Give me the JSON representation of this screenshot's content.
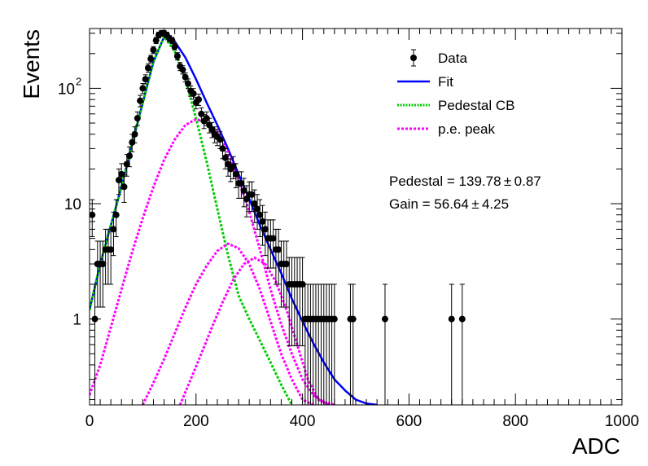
{
  "chart_data": {
    "type": "scatter",
    "xlabel": "ADC",
    "ylabel": "Events",
    "xlim": [
      0,
      1000
    ],
    "ylim": [
      0.18,
      330
    ],
    "yscale": "log",
    "grid": false,
    "legend_position": "top-right",
    "x_ticks": [
      0,
      200,
      400,
      600,
      800,
      1000
    ],
    "y_ticks": [
      {
        "value": 1,
        "label": "1"
      },
      {
        "value": 10,
        "label": "10"
      },
      {
        "value": 100,
        "label": "10",
        "sup": "2"
      }
    ],
    "legend": [
      {
        "key": "data",
        "label": "Data"
      },
      {
        "key": "fit",
        "label": "Fit"
      },
      {
        "key": "pedestal",
        "label": "Pedestal CB"
      },
      {
        "key": "pe",
        "label": "p.e. peak"
      }
    ],
    "annotations": {
      "pedestal": "Pedestal = 139.78 ± 0.87",
      "gain": "Gain = 56.64 ± 4.25"
    },
    "colors": {
      "data": "#000000",
      "fit": "#0000ff",
      "pedestal": "#00cc00",
      "pe": "#ff00ff"
    },
    "series": [
      {
        "name": "Data",
        "kind": "points",
        "x": [
          5,
          10,
          15,
          20,
          25,
          30,
          35,
          40,
          45,
          50,
          55,
          60,
          65,
          70,
          75,
          80,
          85,
          90,
          95,
          100,
          105,
          110,
          115,
          120,
          125,
          130,
          135,
          140,
          145,
          150,
          155,
          160,
          165,
          170,
          175,
          180,
          185,
          190,
          195,
          200,
          205,
          210,
          215,
          220,
          225,
          230,
          235,
          240,
          245,
          250,
          255,
          260,
          265,
          270,
          275,
          280,
          285,
          290,
          295,
          300,
          305,
          310,
          315,
          320,
          325,
          330,
          335,
          340,
          345,
          350,
          355,
          360,
          365,
          370,
          375,
          380,
          385,
          390,
          395,
          400,
          405,
          410,
          415,
          420,
          425,
          430,
          435,
          440,
          445,
          450,
          455,
          460,
          490,
          495,
          555,
          680,
          700
        ],
        "y": [
          8,
          1,
          3,
          3,
          3,
          4,
          4,
          4,
          6,
          8,
          16,
          18,
          14,
          22,
          26,
          34,
          40,
          55,
          78,
          100,
          120,
          150,
          180,
          215,
          260,
          290,
          300,
          300,
          290,
          270,
          260,
          230,
          190,
          155,
          145,
          125,
          110,
          95,
          90,
          75,
          80,
          60,
          52,
          55,
          48,
          44,
          40,
          38,
          36,
          30,
          25,
          22,
          20,
          21,
          18,
          15,
          15,
          13,
          11,
          12,
          12,
          10,
          9,
          8,
          7,
          6,
          5,
          5,
          5,
          4,
          4,
          3,
          3,
          3,
          2,
          2,
          2,
          2,
          2,
          2,
          1,
          1,
          1,
          1,
          1,
          1,
          1,
          1,
          1,
          1,
          1,
          1,
          1,
          1,
          1,
          1,
          1
        ]
      },
      {
        "name": "Fit",
        "kind": "line",
        "x": [
          0,
          20,
          40,
          60,
          80,
          100,
          120,
          140,
          160,
          180,
          200,
          220,
          240,
          260,
          280,
          300,
          320,
          340,
          360,
          380,
          400,
          420,
          440,
          460,
          480,
          500,
          520,
          540
        ],
        "y": [
          1.2,
          3,
          6.5,
          14,
          33,
          75,
          170,
          280,
          255,
          185,
          120,
          75,
          48,
          30,
          18,
          11,
          6.5,
          4,
          2.5,
          1.5,
          0.95,
          0.62,
          0.42,
          0.3,
          0.24,
          0.2,
          0.185,
          0.18
        ]
      },
      {
        "name": "Pedestal CB",
        "kind": "line",
        "x": [
          0,
          20,
          40,
          60,
          80,
          100,
          120,
          140,
          160,
          180,
          200,
          220,
          240,
          260,
          280,
          300,
          320,
          340,
          360,
          380
        ],
        "y": [
          1.2,
          3,
          6.5,
          14,
          33,
          75,
          170,
          280,
          210,
          120,
          55,
          23,
          9,
          3.6,
          1.6,
          1.0,
          0.65,
          0.42,
          0.27,
          0.18
        ]
      },
      {
        "name": "p.e. peak",
        "kind": "line",
        "x": [
          0,
          20,
          40,
          60,
          80,
          100,
          120,
          140,
          160,
          180,
          200,
          220,
          240,
          260,
          280,
          300,
          320,
          340,
          360,
          380,
          400,
          420,
          440,
          460
        ],
        "y": [
          0.22,
          0.4,
          0.85,
          1.8,
          3.8,
          7.5,
          14,
          24,
          36,
          48,
          54,
          51,
          41,
          28,
          16,
          8.5,
          4,
          1.8,
          0.9,
          0.5,
          0.3,
          0.22,
          0.19,
          0.18
        ]
      },
      {
        "name": "p.e. peak",
        "kind": "line",
        "x": [
          100,
          120,
          140,
          160,
          180,
          200,
          220,
          240,
          260,
          280,
          300,
          320,
          340,
          360,
          380,
          400,
          420
        ],
        "y": [
          0.18,
          0.28,
          0.45,
          0.75,
          1.25,
          2.0,
          2.9,
          3.9,
          4.5,
          4.1,
          3.0,
          1.8,
          0.95,
          0.5,
          0.3,
          0.2,
          0.18
        ]
      },
      {
        "name": "p.e. peak",
        "kind": "line",
        "x": [
          170,
          190,
          210,
          230,
          250,
          270,
          290,
          310,
          330,
          350,
          370,
          390,
          410,
          430,
          450
        ],
        "y": [
          0.18,
          0.3,
          0.5,
          0.85,
          1.4,
          2.2,
          3.0,
          3.4,
          3.0,
          2.1,
          1.2,
          0.6,
          0.3,
          0.2,
          0.18
        ]
      }
    ]
  }
}
